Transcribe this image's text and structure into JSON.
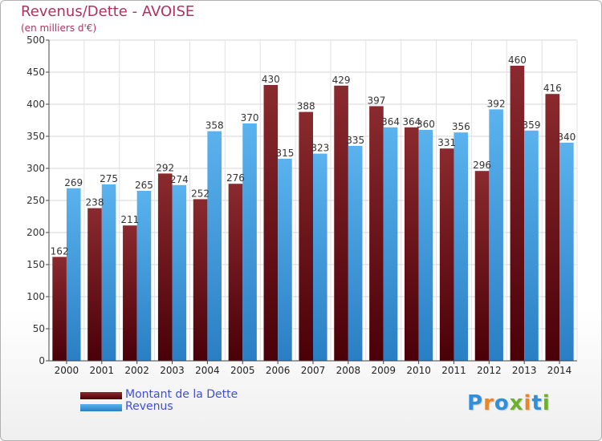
{
  "chart_title": "Revenus/Dette - AVOISE",
  "chart_subtitle": "(en milliers d'€)",
  "chart_data": {
    "type": "bar",
    "title": "Revenus/Dette - AVOISE",
    "subtitle": "(en milliers d'€)",
    "xlabel": "",
    "ylabel": "",
    "categories": [
      "2000",
      "2001",
      "2002",
      "2003",
      "2004",
      "2005",
      "2006",
      "2007",
      "2008",
      "2009",
      "2010",
      "2011",
      "2012",
      "2013",
      "2014"
    ],
    "series": [
      {
        "name": "Montant de la Dette",
        "color": "#7a1a1e",
        "values": [
          162,
          238,
          211,
          292,
          252,
          276,
          430,
          388,
          429,
          397,
          364,
          331,
          296,
          460,
          416
        ]
      },
      {
        "name": "Revenus",
        "color": "#3f9fe0",
        "values": [
          269,
          275,
          265,
          274,
          358,
          370,
          315,
          323,
          335,
          364,
          360,
          356,
          392,
          359,
          340
        ]
      }
    ],
    "ylim": [
      0,
      500
    ],
    "yticks": [
      0,
      50,
      100,
      150,
      200,
      250,
      300,
      350,
      400,
      450,
      500
    ],
    "grid": true,
    "legend_position": "bottom-left",
    "data_labels": true
  },
  "legend": [
    {
      "label": "Montant de la Dette",
      "color": "#7a1a1e"
    },
    {
      "label": "Revenus",
      "color": "#3f9fe0"
    }
  ],
  "logo": {
    "letters": [
      "P",
      "r",
      "o",
      "x",
      "i",
      "t",
      "i"
    ],
    "colors": [
      "#2f8fd8",
      "#e8862a",
      "#2f8fd8",
      "#6cb02c",
      "#e8862a",
      "#2f8fd8",
      "#6cb02c"
    ]
  }
}
